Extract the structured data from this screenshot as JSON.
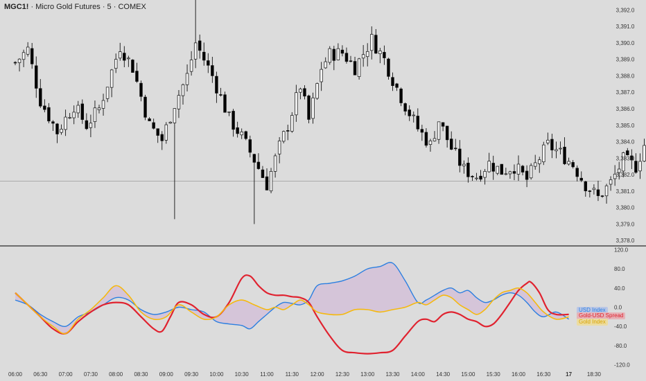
{
  "header": {
    "symbol": "MGC1!",
    "description": "Micro Gold Futures",
    "interval": "5",
    "exchange": "COMEX",
    "separator": " · "
  },
  "colors": {
    "background": "#dcdcdc",
    "candle_up_fill": "#f4f4f4",
    "candle_down_fill": "#000000",
    "candle_wick": "#111111",
    "divider": "#2b2b2b",
    "usd_line": "#2b7fe0",
    "spread_line": "#e0222f",
    "gold_line": "#f5b90f",
    "fill": "#d3bdd8"
  },
  "legend": {
    "usd_label": "USD Index",
    "spread_label": "Gold-USD Spread",
    "gold_label": "Gold Index"
  },
  "chart_data": [
    {
      "type": "candlestick",
      "title": "MGC1! · Micro Gold Futures · 5 · COMEX",
      "ylim": [
        3377.8,
        3392.6
      ],
      "y_ticks": [
        "3,392.0",
        "3,391.0",
        "3,390.0",
        "3,389.0",
        "3,388.0",
        "3,387.0",
        "3,386.0",
        "3,385.0",
        "3,384.0",
        "3,383.0",
        "3,382.0",
        "3,381.0",
        "3,380.0",
        "3,379.0",
        "3,378.0"
      ],
      "y_tick_values": [
        3392,
        3391,
        3390,
        3389,
        3388,
        3387,
        3386,
        3385,
        3384,
        3383,
        3382,
        3381,
        3380,
        3379,
        3378
      ],
      "horizontal_line": 3381.6,
      "close_path": [
        [
          0,
          3388.8
        ],
        [
          3,
          3389.6
        ],
        [
          6,
          3386.5
        ],
        [
          10,
          3384.6
        ],
        [
          14,
          3386.2
        ],
        [
          17,
          3385.0
        ],
        [
          20,
          3386.0
        ],
        [
          25,
          3389.8
        ],
        [
          28,
          3388.5
        ],
        [
          32,
          3385.0
        ],
        [
          35,
          3384.1
        ],
        [
          38,
          3386.3
        ],
        [
          41,
          3388.0
        ],
        [
          43,
          3390.0
        ],
        [
          47,
          3388.0
        ],
        [
          51,
          3385.4
        ],
        [
          54,
          3384.3
        ],
        [
          57,
          3382.9
        ],
        [
          60,
          3381.4
        ],
        [
          63,
          3383.7
        ],
        [
          65,
          3385.0
        ],
        [
          68,
          3387.4
        ],
        [
          70,
          3385.3
        ],
        [
          73,
          3388.5
        ],
        [
          75,
          3389.3
        ],
        [
          78,
          3389.4
        ],
        [
          81,
          3388.5
        ],
        [
          85,
          3390.2
        ],
        [
          88,
          3389.0
        ],
        [
          90,
          3387.8
        ],
        [
          93,
          3386.2
        ],
        [
          96,
          3384.8
        ],
        [
          99,
          3383.8
        ],
        [
          101,
          3385.3
        ],
        [
          104,
          3383.6
        ],
        [
          107,
          3382.3
        ],
        [
          110,
          3381.9
        ],
        [
          113,
          3382.7
        ],
        [
          116,
          3382.2
        ],
        [
          119,
          3382.5
        ],
        [
          122,
          3381.7
        ],
        [
          125,
          3383.0
        ],
        [
          127,
          3383.8
        ],
        [
          130,
          3383.3
        ],
        [
          133,
          3382.6
        ],
        [
          136,
          3381.4
        ],
        [
          139,
          3380.6
        ],
        [
          142,
          3381.5
        ],
        [
          145,
          3382.9
        ],
        [
          148,
          3382.5
        ],
        [
          150,
          3383.8
        ],
        [
          153,
          3383.2
        ],
        [
          156,
          3382.3
        ],
        [
          159,
          3381.7
        ],
        [
          162,
          3381.5
        ]
      ],
      "wick_spikes": [
        [
          43,
          3392.6
        ],
        [
          38,
          3379.3
        ],
        [
          57,
          3379.0
        ],
        [
          85,
          3391.0
        ]
      ],
      "candle_count": 163
    },
    {
      "type": "line",
      "ylim": [
        -125,
        125
      ],
      "y_ticks": [
        "120.0",
        "80.0",
        "40.0",
        "0.0",
        "-40.0",
        "-80.0",
        "-120.0"
      ],
      "y_tick_values": [
        120,
        80,
        40,
        0,
        -40,
        -80,
        -120
      ],
      "x_tick_labels": [
        "06:00",
        "06:30",
        "07:00",
        "07:30",
        "08:00",
        "08:30",
        "09:00",
        "09:30",
        "10:00",
        "10:30",
        "11:00",
        "11:30",
        "12:00",
        "12:30",
        "13:00",
        "13:30",
        "14:00",
        "14:30",
        "15:00",
        "15:30",
        "16:00",
        "16:30",
        "17",
        "18:30"
      ],
      "x_tick_values": [
        0,
        6,
        12,
        18,
        24,
        30,
        36,
        42,
        48,
        54,
        60,
        66,
        72,
        78,
        84,
        90,
        96,
        102,
        108,
        114,
        120,
        126,
        132,
        138
      ],
      "bold_x_tick": "17",
      "series": [
        {
          "name": "USD Index",
          "points": [
            [
              0,
              15
            ],
            [
              3,
              5
            ],
            [
              6,
              -15
            ],
            [
              9,
              -30
            ],
            [
              12,
              -40
            ],
            [
              15,
              -20
            ],
            [
              18,
              -10
            ],
            [
              21,
              5
            ],
            [
              24,
              20
            ],
            [
              27,
              15
            ],
            [
              30,
              -5
            ],
            [
              33,
              -15
            ],
            [
              36,
              -10
            ],
            [
              39,
              0
            ],
            [
              42,
              -5
            ],
            [
              45,
              -10
            ],
            [
              48,
              -30
            ],
            [
              51,
              -35
            ],
            [
              54,
              -38
            ],
            [
              56,
              -45
            ],
            [
              58,
              -30
            ],
            [
              60,
              -15
            ],
            [
              62,
              0
            ],
            [
              64,
              10
            ],
            [
              66,
              8
            ],
            [
              68,
              5
            ],
            [
              70,
              15
            ],
            [
              72,
              45
            ],
            [
              75,
              50
            ],
            [
              78,
              55
            ],
            [
              81,
              65
            ],
            [
              84,
              80
            ],
            [
              87,
              85
            ],
            [
              90,
              92
            ],
            [
              93,
              55
            ],
            [
              96,
              10
            ],
            [
              98,
              15
            ],
            [
              100,
              25
            ],
            [
              102,
              35
            ],
            [
              104,
              40
            ],
            [
              106,
              30
            ],
            [
              108,
              35
            ],
            [
              110,
              20
            ],
            [
              112,
              10
            ],
            [
              114,
              15
            ],
            [
              116,
              25
            ],
            [
              118,
              30
            ],
            [
              120,
              25
            ],
            [
              122,
              10
            ],
            [
              124,
              -10
            ],
            [
              126,
              -20
            ],
            [
              129,
              -10
            ],
            [
              132,
              -25
            ]
          ]
        },
        {
          "name": "Gold-USD Spread",
          "points": [
            [
              0,
              30
            ],
            [
              3,
              5
            ],
            [
              6,
              -20
            ],
            [
              9,
              -45
            ],
            [
              12,
              -55
            ],
            [
              15,
              -30
            ],
            [
              18,
              -10
            ],
            [
              21,
              5
            ],
            [
              24,
              10
            ],
            [
              27,
              5
            ],
            [
              30,
              -20
            ],
            [
              33,
              -45
            ],
            [
              35,
              -50
            ],
            [
              37,
              -20
            ],
            [
              39,
              10
            ],
            [
              42,
              5
            ],
            [
              45,
              -15
            ],
            [
              48,
              -20
            ],
            [
              51,
              10
            ],
            [
              54,
              60
            ],
            [
              56,
              65
            ],
            [
              58,
              45
            ],
            [
              60,
              30
            ],
            [
              62,
              25
            ],
            [
              64,
              25
            ],
            [
              66,
              22
            ],
            [
              68,
              20
            ],
            [
              70,
              10
            ],
            [
              72,
              -20
            ],
            [
              75,
              -60
            ],
            [
              78,
              -90
            ],
            [
              81,
              -95
            ],
            [
              84,
              -97
            ],
            [
              87,
              -95
            ],
            [
              90,
              -90
            ],
            [
              93,
              -60
            ],
            [
              96,
              -30
            ],
            [
              98,
              -25
            ],
            [
              100,
              -30
            ],
            [
              102,
              -15
            ],
            [
              104,
              -10
            ],
            [
              106,
              -15
            ],
            [
              108,
              -25
            ],
            [
              110,
              -30
            ],
            [
              112,
              -40
            ],
            [
              114,
              -35
            ],
            [
              116,
              -15
            ],
            [
              118,
              10
            ],
            [
              120,
              35
            ],
            [
              122,
              50
            ],
            [
              123,
              52
            ],
            [
              125,
              30
            ],
            [
              127,
              -5
            ],
            [
              129,
              -15
            ],
            [
              132,
              -15
            ]
          ]
        },
        {
          "name": "Gold Index",
          "points": [
            [
              0,
              30
            ],
            [
              3,
              5
            ],
            [
              6,
              -20
            ],
            [
              9,
              -40
            ],
            [
              12,
              -55
            ],
            [
              15,
              -25
            ],
            [
              18,
              -5
            ],
            [
              21,
              20
            ],
            [
              24,
              45
            ],
            [
              27,
              25
            ],
            [
              30,
              -10
            ],
            [
              33,
              -25
            ],
            [
              36,
              -20
            ],
            [
              39,
              5
            ],
            [
              42,
              -10
            ],
            [
              45,
              -25
            ],
            [
              48,
              -20
            ],
            [
              51,
              5
            ],
            [
              54,
              15
            ],
            [
              57,
              5
            ],
            [
              60,
              -5
            ],
            [
              62,
              0
            ],
            [
              64,
              -5
            ],
            [
              66,
              5
            ],
            [
              68,
              15
            ],
            [
              70,
              5
            ],
            [
              72,
              -10
            ],
            [
              75,
              -15
            ],
            [
              78,
              -15
            ],
            [
              81,
              -5
            ],
            [
              84,
              -5
            ],
            [
              87,
              -10
            ],
            [
              90,
              -5
            ],
            [
              93,
              0
            ],
            [
              96,
              10
            ],
            [
              98,
              5
            ],
            [
              100,
              15
            ],
            [
              102,
              25
            ],
            [
              104,
              20
            ],
            [
              106,
              5
            ],
            [
              108,
              -5
            ],
            [
              110,
              -15
            ],
            [
              112,
              -5
            ],
            [
              114,
              15
            ],
            [
              116,
              30
            ],
            [
              118,
              35
            ],
            [
              120,
              40
            ],
            [
              122,
              30
            ],
            [
              124,
              10
            ],
            [
              126,
              -10
            ],
            [
              129,
              -25
            ],
            [
              132,
              -20
            ]
          ]
        }
      ]
    }
  ]
}
